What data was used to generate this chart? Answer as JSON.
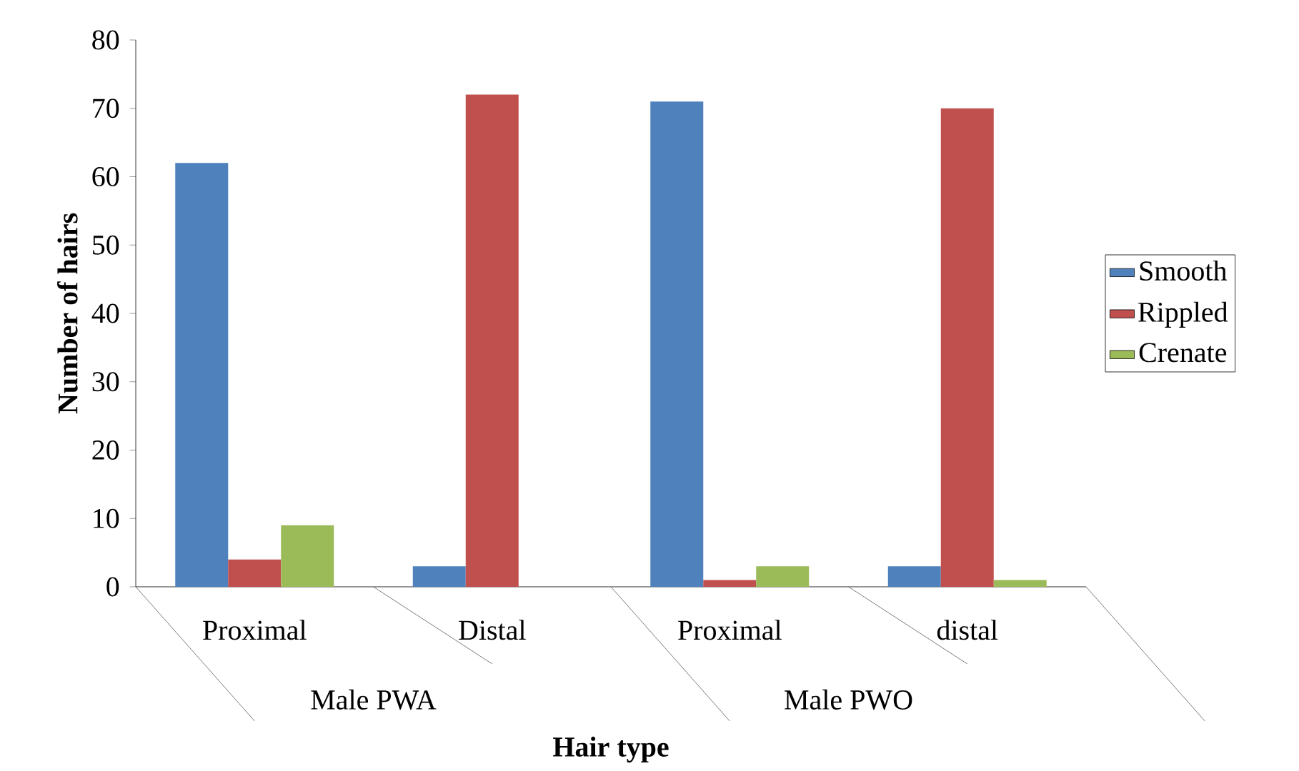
{
  "chart_data": {
    "type": "bar",
    "xlabel": "Hair type",
    "ylabel": "Number of hairs",
    "categories": [
      "Proximal",
      "Distal",
      "Proximal",
      "distal"
    ],
    "annotations": [
      "Male  PWA",
      "Male PWO"
    ],
    "series": [
      {
        "name": "Smooth",
        "color": "#4f81bd",
        "values": [
          62,
          3,
          71,
          3
        ]
      },
      {
        "name": "Rippled",
        "color": "#c0504d",
        "values": [
          4,
          72,
          1,
          70
        ]
      },
      {
        "name": "Crenate",
        "color": "#9bbb59",
        "values": [
          9,
          0,
          3,
          1
        ]
      }
    ],
    "ylim": [
      0,
      80
    ],
    "yticks": [
      0,
      10,
      20,
      30,
      40,
      50,
      60,
      70,
      80
    ],
    "legend": "right"
  }
}
